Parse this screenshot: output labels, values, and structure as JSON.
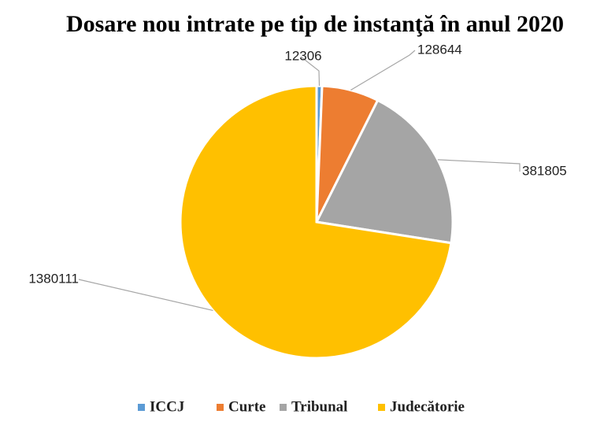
{
  "chart_data": {
    "type": "pie",
    "title": "Dosare nou intrate pe tip de instanţă în anul 2020",
    "categories": [
      "ICCJ",
      "Curte",
      "Tribunal",
      "Judecătorie"
    ],
    "values": [
      12306,
      128644,
      381805,
      1380111
    ],
    "colors": [
      "#5b9bd5",
      "#ed7d31",
      "#a5a5a5",
      "#ffc000"
    ],
    "legend": "bottom"
  }
}
